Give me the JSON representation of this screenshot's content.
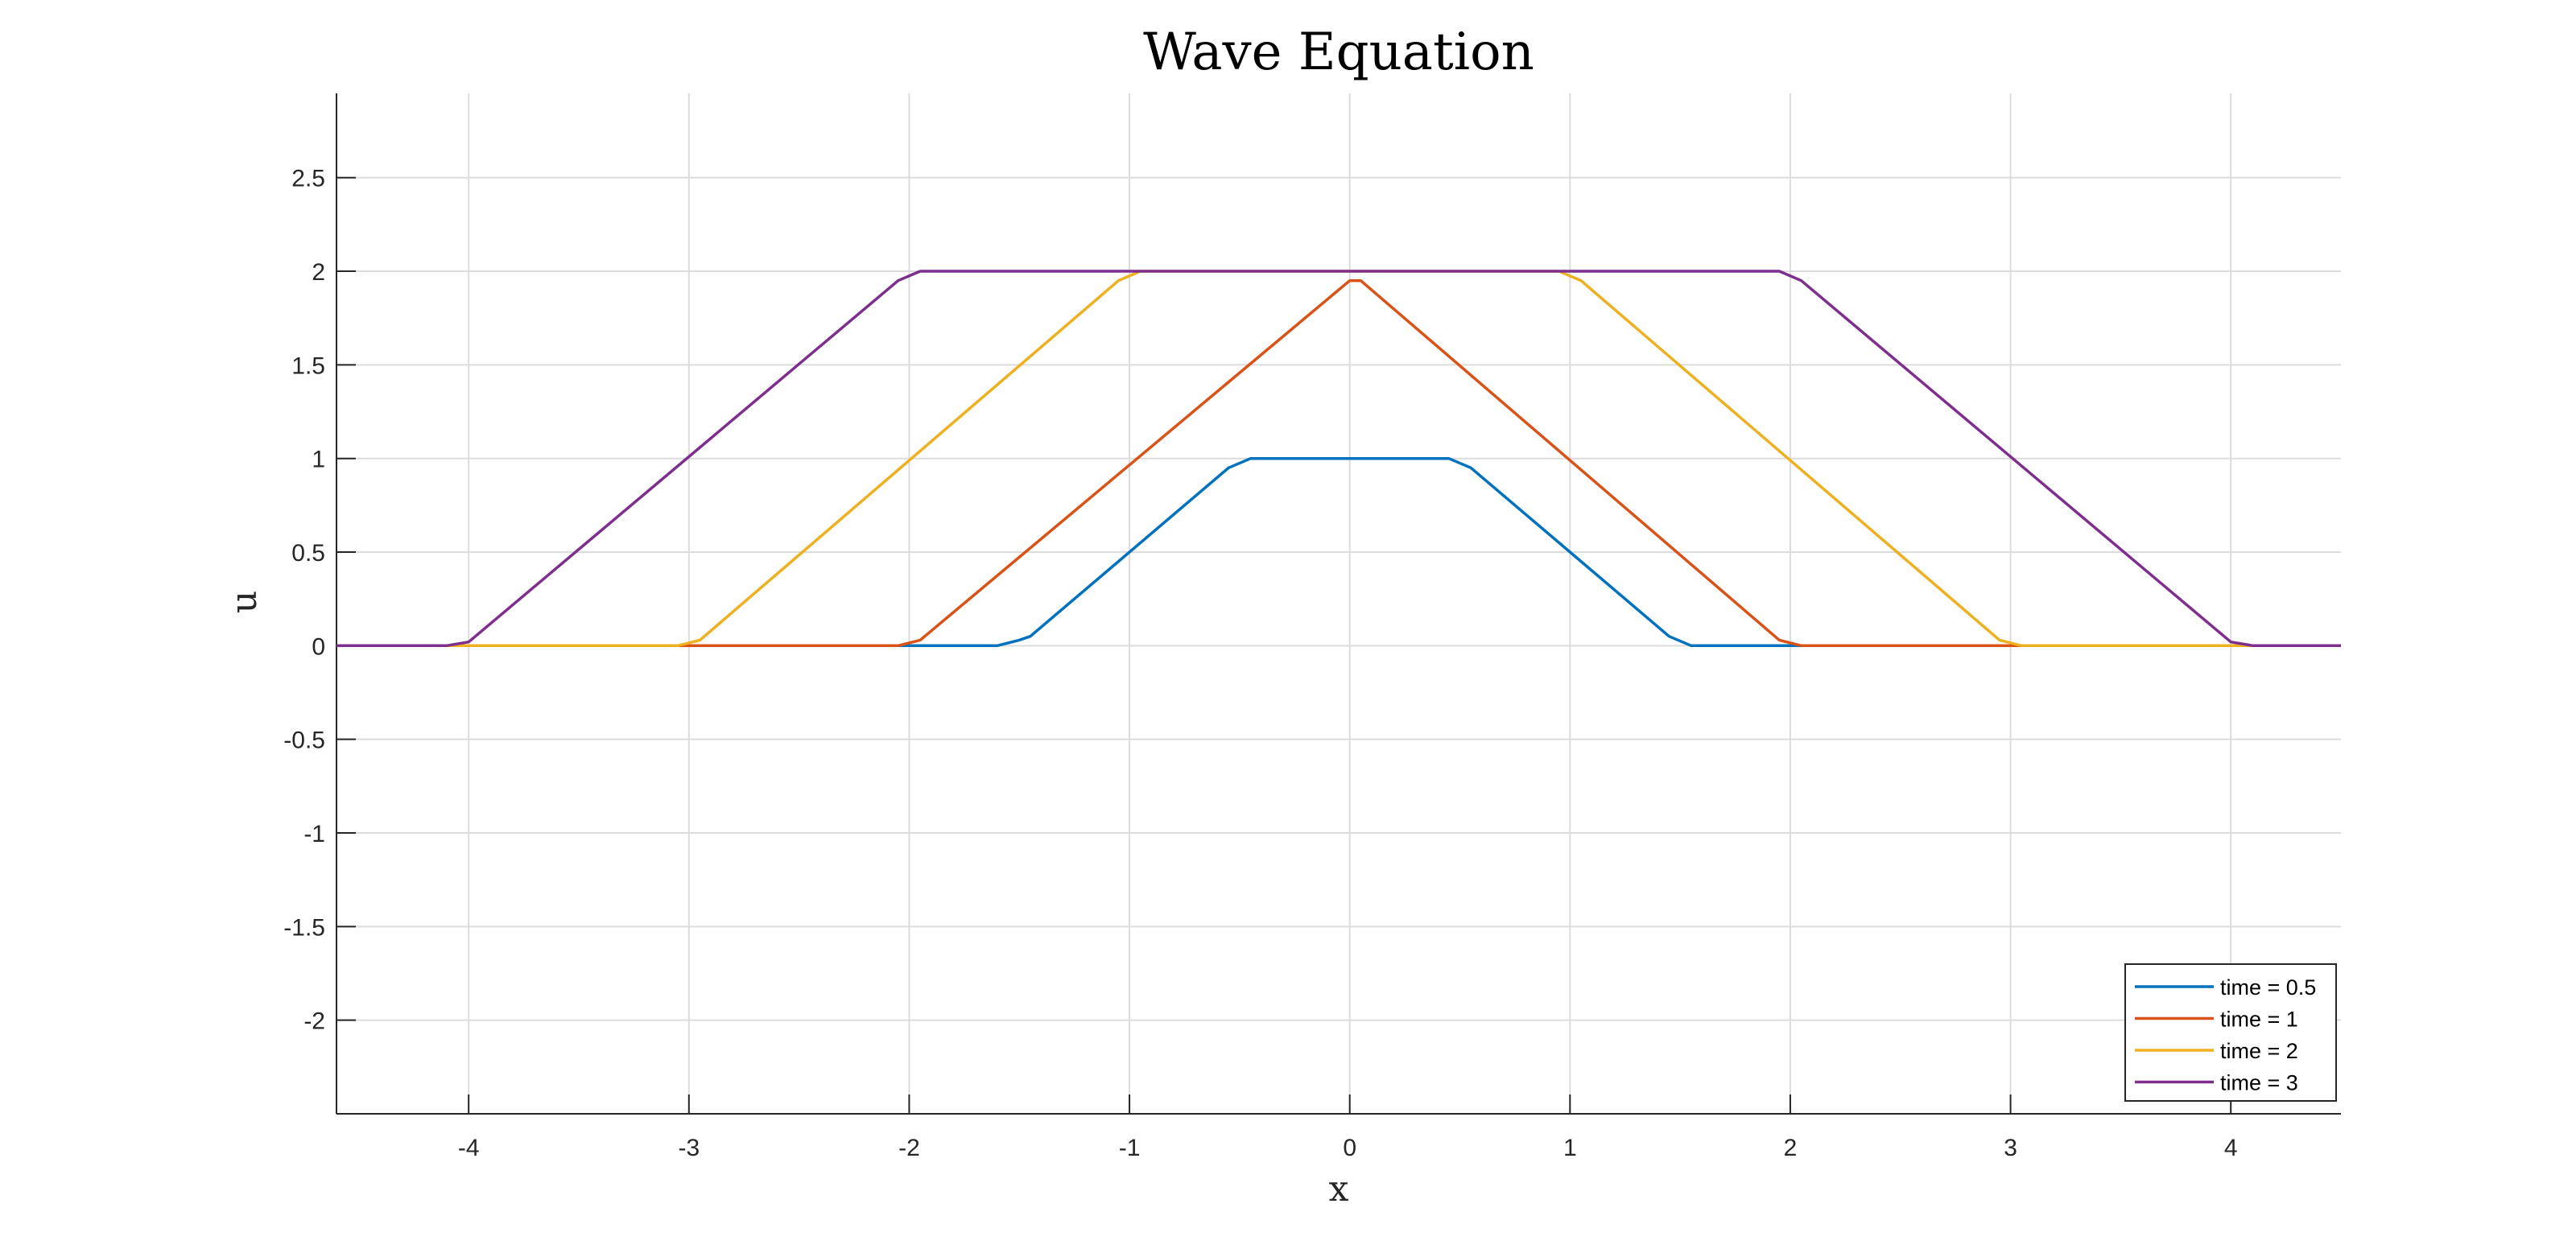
{
  "chart_data": {
    "type": "line",
    "title": "Wave Equation",
    "xlabel": "x",
    "ylabel": "u",
    "xlim": [
      -4.6,
      4.5
    ],
    "ylim": [
      -2.5,
      2.95
    ],
    "xticks": [
      -4,
      -3,
      -2,
      -1,
      0,
      1,
      2,
      3,
      4
    ],
    "xtick_labels": [
      "-4",
      "-3",
      "-2",
      "-1",
      "0",
      "1",
      "2",
      "3",
      "4"
    ],
    "yticks": [
      2.5,
      2,
      1.5,
      1,
      0.5,
      0,
      -0.5,
      -1,
      -1.5,
      -2
    ],
    "ytick_labels": [
      "2.5",
      "2",
      "1.5",
      "1",
      "0.5",
      "0",
      "-0.5",
      "-1",
      "-1.5",
      "-2"
    ],
    "grid": true,
    "legend_position": "bottom-right",
    "series": [
      {
        "name": "time = 0.5",
        "color": "#0072bd",
        "x": [
          -4.6,
          -1.6,
          -1.5,
          -1.45,
          -0.55,
          -0.45,
          0.45,
          0.55,
          1.45,
          1.55,
          4.5
        ],
        "y": [
          0,
          0,
          0.03,
          0.05,
          0.95,
          1,
          1,
          0.95,
          0.05,
          0,
          0
        ]
      },
      {
        "name": "time = 1",
        "color": "#d95319",
        "x": [
          -4.6,
          -2.05,
          -1.95,
          0.0,
          0.05,
          1.95,
          2.05,
          4.5
        ],
        "y": [
          0,
          0,
          0.03,
          1.95,
          1.95,
          0.03,
          0,
          0
        ]
      },
      {
        "name": "time = 2",
        "color": "#edb120",
        "x": [
          -4.6,
          -3.05,
          -2.95,
          -1.05,
          -0.95,
          0.95,
          1.05,
          2.95,
          3.05,
          4.5
        ],
        "y": [
          0,
          0,
          0.03,
          1.95,
          2,
          2,
          1.95,
          0.03,
          0,
          0
        ]
      },
      {
        "name": "time = 3",
        "color": "#7e2f8e",
        "x": [
          -4.6,
          -4.1,
          -4.0,
          -2.05,
          -1.95,
          1.95,
          2.05,
          4.0,
          4.1,
          4.5
        ],
        "y": [
          0,
          0,
          0.02,
          1.95,
          2,
          2,
          1.95,
          0.02,
          0,
          0
        ]
      }
    ]
  }
}
